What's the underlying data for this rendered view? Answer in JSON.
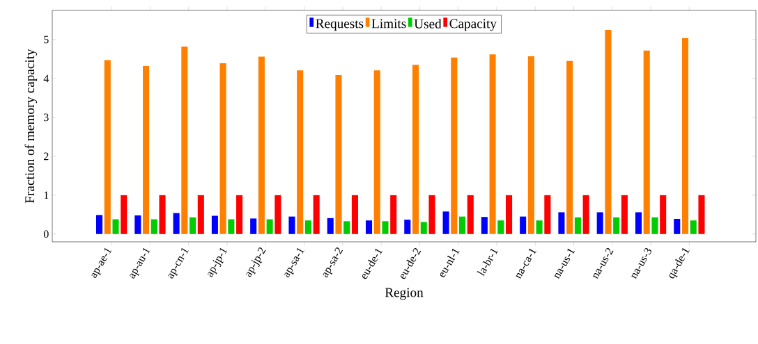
{
  "chart_data": {
    "type": "bar",
    "xlabel": "Region",
    "ylabel": "Fraction of memory capacity",
    "categories": [
      "ap-ae-1",
      "ap-au-1",
      "ap-cn-1",
      "ap-jp-1",
      "ap-jp-2",
      "ap-sa-1",
      "ap-sa-2",
      "eu-de-1",
      "eu-de-2",
      "eu-nl-1",
      "la-br-1",
      "na-ca-1",
      "na-us-1",
      "na-us-2",
      "na-us-3",
      "qa-de-1"
    ],
    "series": [
      {
        "name": "Requests",
        "color": "#0000ff",
        "values": [
          0.49,
          0.48,
          0.54,
          0.47,
          0.4,
          0.45,
          0.41,
          0.35,
          0.37,
          0.58,
          0.44,
          0.45,
          0.56,
          0.56,
          0.56,
          0.39
        ]
      },
      {
        "name": "Limits",
        "color": "#ff8000",
        "values": [
          4.47,
          4.32,
          4.82,
          4.39,
          4.56,
          4.21,
          4.09,
          4.21,
          4.35,
          4.54,
          4.62,
          4.57,
          4.45,
          5.25,
          4.72,
          5.04
        ]
      },
      {
        "name": "Used",
        "color": "#00cc00",
        "values": [
          0.38,
          0.38,
          0.43,
          0.38,
          0.38,
          0.35,
          0.33,
          0.33,
          0.31,
          0.45,
          0.35,
          0.35,
          0.43,
          0.43,
          0.43,
          0.35
        ]
      },
      {
        "name": "Capacity",
        "color": "#ff0000",
        "values": [
          1,
          1,
          1,
          1,
          1,
          1,
          1,
          1,
          1,
          1,
          1,
          1,
          1,
          1,
          1,
          1
        ]
      }
    ],
    "ylim": [
      -0.2,
      5.75
    ],
    "yticks": [
      0,
      1,
      2,
      3,
      4,
      5
    ],
    "legend": "top",
    "grid": false
  }
}
